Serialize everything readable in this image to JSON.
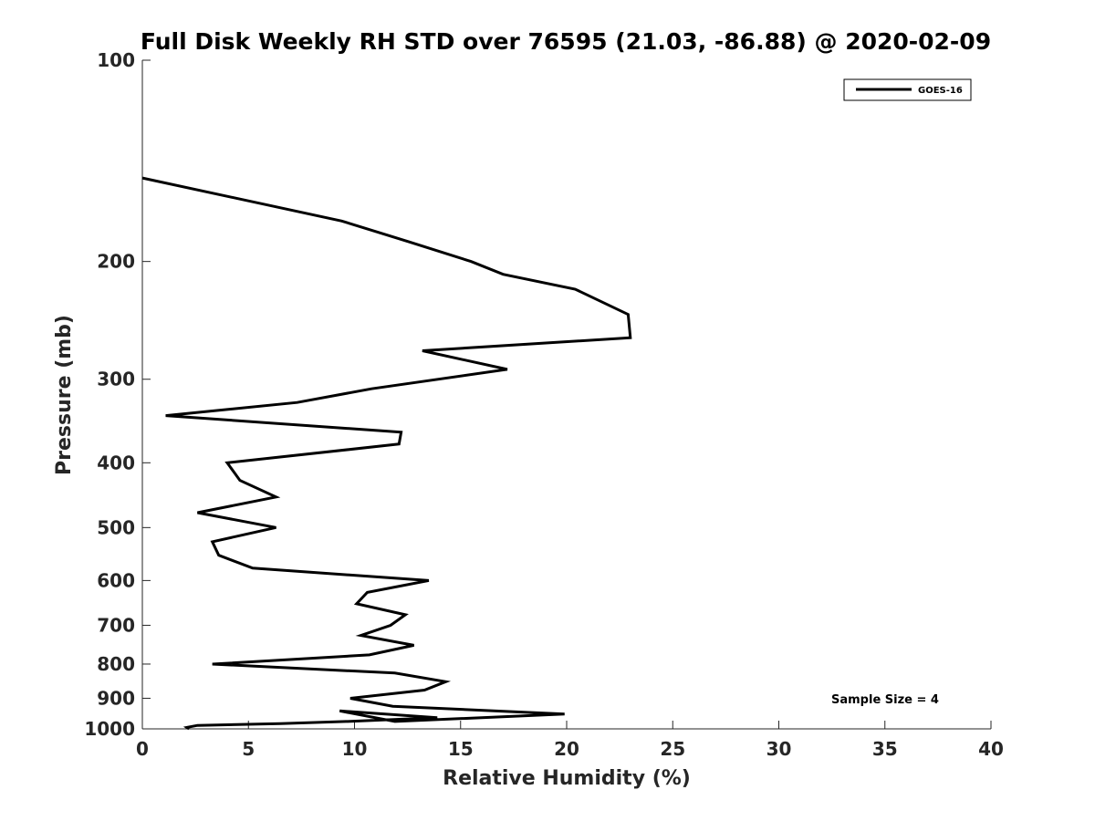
{
  "chart_data": {
    "type": "line",
    "title": "Full Disk Weekly RH STD over 76595 (21.03, -86.88) @ 2020-02-09",
    "xlabel": "Relative Humidity (%)",
    "ylabel": "Pressure (mb)",
    "xlim": [
      0,
      40
    ],
    "ylim": [
      100,
      1000
    ],
    "y_scale": "log",
    "y_reversed": true,
    "x_ticks": [
      0,
      5,
      10,
      15,
      20,
      25,
      30,
      35,
      40
    ],
    "y_ticks": [
      100,
      200,
      300,
      400,
      500,
      600,
      700,
      800,
      900,
      1000
    ],
    "grid": false,
    "legend_position": "top-right",
    "series": [
      {
        "name": "GOES-16",
        "color": "#000000",
        "points": [
          [
            0,
            150
          ],
          [
            9.4,
            174
          ],
          [
            12.6,
            187
          ],
          [
            15.5,
            200
          ],
          [
            17,
            209
          ],
          [
            20.4,
            220
          ],
          [
            22.9,
            240
          ],
          [
            23.0,
            260
          ],
          [
            13.2,
            272
          ],
          [
            17.2,
            290
          ],
          [
            10.8,
            310
          ],
          [
            7.3,
            325
          ],
          [
            1.1,
            340
          ],
          [
            12.2,
            360
          ],
          [
            12.1,
            375
          ],
          [
            4,
            400
          ],
          [
            4.6,
            425
          ],
          [
            6.3,
            450
          ],
          [
            2.6,
            475
          ],
          [
            6.3,
            500
          ],
          [
            3.3,
            525
          ],
          [
            3.6,
            550
          ],
          [
            5.2,
            575
          ],
          [
            13.5,
            600
          ],
          [
            10.6,
            625
          ],
          [
            10.1,
            650
          ],
          [
            12.4,
            675
          ],
          [
            11.7,
            700
          ],
          [
            10.3,
            725
          ],
          [
            12.8,
            750
          ],
          [
            10.7,
            775
          ],
          [
            3.3,
            800
          ],
          [
            11.9,
            825
          ],
          [
            14.3,
            850
          ],
          [
            13.3,
            875
          ],
          [
            9.8,
            900
          ],
          [
            11.8,
            925
          ],
          [
            19.9,
            950
          ],
          [
            11.9,
            975
          ],
          [
            9.3,
            1000
          ],
          [
            13.9,
            1000
          ],
          [
            9.6,
            1000
          ],
          [
            6.5,
            1000
          ],
          [
            2.6,
            1000
          ],
          [
            2.1,
            1000
          ],
          [
            2.2,
            1000
          ]
        ]
      }
    ],
    "annotation": "Sample Size = 4"
  }
}
